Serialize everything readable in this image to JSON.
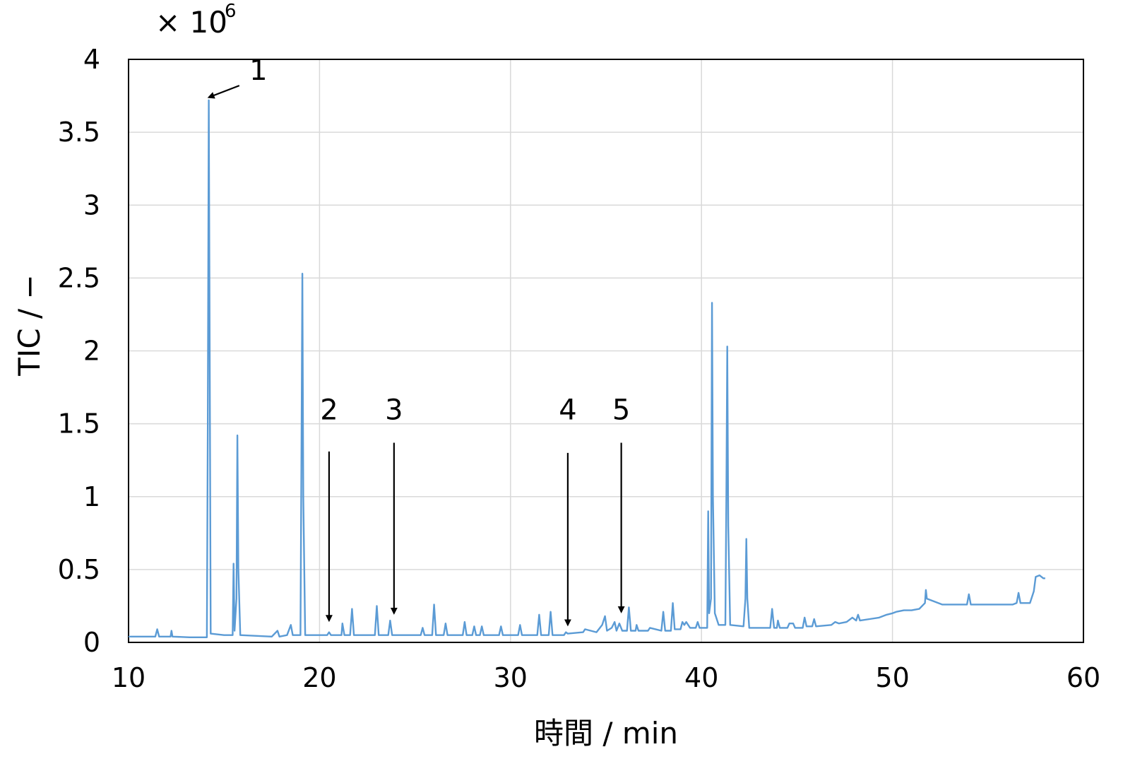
{
  "chart_data": {
    "type": "line",
    "xlabel": "時間 / min",
    "ylabel": "TIC / −",
    "y_multiplier_label": "× 10",
    "y_multiplier_exponent": "6",
    "xlim": [
      10,
      60
    ],
    "ylim": [
      0,
      4
    ],
    "x_ticks": [
      10,
      20,
      30,
      40,
      50,
      60
    ],
    "y_ticks": [
      0,
      0.5,
      1,
      1.5,
      2,
      2.5,
      3,
      3.5,
      4
    ],
    "y_tick_labels": [
      "0",
      "0.5",
      "1",
      "1.5",
      "2",
      "2.5",
      "3",
      "3.5",
      "4"
    ],
    "x_tick_labels": [
      "10",
      "20",
      "30",
      "40",
      "50",
      "60"
    ],
    "grid": true,
    "line_color": "#5b9bd5",
    "series": [
      {
        "values": [
          [
            10.0,
            0.04
          ],
          [
            11.4,
            0.04
          ],
          [
            11.5,
            0.09
          ],
          [
            11.6,
            0.04
          ],
          [
            12.2,
            0.04
          ],
          [
            12.25,
            0.08
          ],
          [
            12.3,
            0.04
          ],
          [
            13.2,
            0.035
          ],
          [
            14.1,
            0.035
          ],
          [
            14.15,
            1.5
          ],
          [
            14.2,
            3.72
          ],
          [
            14.25,
            2.0
          ],
          [
            14.3,
            0.06
          ],
          [
            15.0,
            0.05
          ],
          [
            15.45,
            0.05
          ],
          [
            15.5,
            0.54
          ],
          [
            15.55,
            0.08
          ],
          [
            15.65,
            0.3
          ],
          [
            15.7,
            1.42
          ],
          [
            15.75,
            0.5
          ],
          [
            15.85,
            0.05
          ],
          [
            17.5,
            0.04
          ],
          [
            17.8,
            0.08
          ],
          [
            17.9,
            0.04
          ],
          [
            18.3,
            0.05
          ],
          [
            18.5,
            0.12
          ],
          [
            18.6,
            0.05
          ],
          [
            19.0,
            0.05
          ],
          [
            19.05,
            1.2
          ],
          [
            19.1,
            2.53
          ],
          [
            19.15,
            1.0
          ],
          [
            19.25,
            0.05
          ],
          [
            20.4,
            0.05
          ],
          [
            20.5,
            0.07
          ],
          [
            20.6,
            0.05
          ],
          [
            21.15,
            0.05
          ],
          [
            21.2,
            0.13
          ],
          [
            21.3,
            0.05
          ],
          [
            21.6,
            0.05
          ],
          [
            21.7,
            0.23
          ],
          [
            21.8,
            0.05
          ],
          [
            22.9,
            0.05
          ],
          [
            23.0,
            0.25
          ],
          [
            23.1,
            0.05
          ],
          [
            23.6,
            0.05
          ],
          [
            23.7,
            0.15
          ],
          [
            23.8,
            0.05
          ],
          [
            25.3,
            0.05
          ],
          [
            25.4,
            0.1
          ],
          [
            25.5,
            0.05
          ],
          [
            25.9,
            0.05
          ],
          [
            26.0,
            0.26
          ],
          [
            26.1,
            0.05
          ],
          [
            26.5,
            0.05
          ],
          [
            26.6,
            0.13
          ],
          [
            26.7,
            0.05
          ],
          [
            27.5,
            0.05
          ],
          [
            27.6,
            0.14
          ],
          [
            27.7,
            0.05
          ],
          [
            28.0,
            0.05
          ],
          [
            28.1,
            0.11
          ],
          [
            28.2,
            0.05
          ],
          [
            28.4,
            0.05
          ],
          [
            28.5,
            0.11
          ],
          [
            28.6,
            0.05
          ],
          [
            29.4,
            0.05
          ],
          [
            29.5,
            0.11
          ],
          [
            29.6,
            0.05
          ],
          [
            30.4,
            0.05
          ],
          [
            30.5,
            0.12
          ],
          [
            30.6,
            0.05
          ],
          [
            31.4,
            0.05
          ],
          [
            31.5,
            0.19
          ],
          [
            31.6,
            0.05
          ],
          [
            32.0,
            0.05
          ],
          [
            32.1,
            0.21
          ],
          [
            32.2,
            0.05
          ],
          [
            32.8,
            0.05
          ],
          [
            32.9,
            0.07
          ],
          [
            33.0,
            0.06
          ],
          [
            33.8,
            0.07
          ],
          [
            33.9,
            0.09
          ],
          [
            34.5,
            0.07
          ],
          [
            34.8,
            0.12
          ],
          [
            34.95,
            0.18
          ],
          [
            35.05,
            0.08
          ],
          [
            35.3,
            0.1
          ],
          [
            35.45,
            0.14
          ],
          [
            35.55,
            0.08
          ],
          [
            35.7,
            0.13
          ],
          [
            35.85,
            0.08
          ],
          [
            36.1,
            0.08
          ],
          [
            36.2,
            0.24
          ],
          [
            36.3,
            0.08
          ],
          [
            36.55,
            0.08
          ],
          [
            36.6,
            0.12
          ],
          [
            36.7,
            0.08
          ],
          [
            37.2,
            0.08
          ],
          [
            37.3,
            0.1
          ],
          [
            37.9,
            0.08
          ],
          [
            38.0,
            0.21
          ],
          [
            38.1,
            0.08
          ],
          [
            38.4,
            0.08
          ],
          [
            38.5,
            0.27
          ],
          [
            38.6,
            0.09
          ],
          [
            38.9,
            0.09
          ],
          [
            39.0,
            0.14
          ],
          [
            39.1,
            0.12
          ],
          [
            39.2,
            0.14
          ],
          [
            39.4,
            0.1
          ],
          [
            39.7,
            0.1
          ],
          [
            39.8,
            0.14
          ],
          [
            39.9,
            0.1
          ],
          [
            40.3,
            0.1
          ],
          [
            40.35,
            0.9
          ],
          [
            40.4,
            0.2
          ],
          [
            40.5,
            0.3
          ],
          [
            40.55,
            2.33
          ],
          [
            40.6,
            1.0
          ],
          [
            40.7,
            0.2
          ],
          [
            40.9,
            0.12
          ],
          [
            41.25,
            0.12
          ],
          [
            41.3,
            1.0
          ],
          [
            41.35,
            2.03
          ],
          [
            41.4,
            0.8
          ],
          [
            41.5,
            0.12
          ],
          [
            42.2,
            0.11
          ],
          [
            42.3,
            0.3
          ],
          [
            42.35,
            0.71
          ],
          [
            42.4,
            0.3
          ],
          [
            42.5,
            0.1
          ],
          [
            43.6,
            0.1
          ],
          [
            43.7,
            0.23
          ],
          [
            43.8,
            0.1
          ],
          [
            43.95,
            0.1
          ],
          [
            44.0,
            0.15
          ],
          [
            44.1,
            0.1
          ],
          [
            44.5,
            0.1
          ],
          [
            44.6,
            0.13
          ],
          [
            44.8,
            0.13
          ],
          [
            44.9,
            0.1
          ],
          [
            45.3,
            0.1
          ],
          [
            45.4,
            0.17
          ],
          [
            45.5,
            0.11
          ],
          [
            45.8,
            0.11
          ],
          [
            45.9,
            0.16
          ],
          [
            46.0,
            0.11
          ],
          [
            46.8,
            0.12
          ],
          [
            47.0,
            0.14
          ],
          [
            47.2,
            0.13
          ],
          [
            47.6,
            0.14
          ],
          [
            47.9,
            0.17
          ],
          [
            48.1,
            0.15
          ],
          [
            48.2,
            0.19
          ],
          [
            48.3,
            0.15
          ],
          [
            48.8,
            0.16
          ],
          [
            49.3,
            0.17
          ],
          [
            49.7,
            0.19
          ],
          [
            50.0,
            0.2
          ],
          [
            50.2,
            0.21
          ],
          [
            50.6,
            0.22
          ],
          [
            51.0,
            0.22
          ],
          [
            51.4,
            0.23
          ],
          [
            51.7,
            0.27
          ],
          [
            51.75,
            0.36
          ],
          [
            51.8,
            0.3
          ],
          [
            52.2,
            0.28
          ],
          [
            52.6,
            0.26
          ],
          [
            53.0,
            0.26
          ],
          [
            53.5,
            0.26
          ],
          [
            53.9,
            0.26
          ],
          [
            54.0,
            0.33
          ],
          [
            54.1,
            0.26
          ],
          [
            54.8,
            0.26
          ],
          [
            55.2,
            0.26
          ],
          [
            55.8,
            0.26
          ],
          [
            56.3,
            0.26
          ],
          [
            56.5,
            0.27
          ],
          [
            56.6,
            0.34
          ],
          [
            56.7,
            0.27
          ],
          [
            57.2,
            0.27
          ],
          [
            57.4,
            0.35
          ],
          [
            57.5,
            0.45
          ],
          [
            57.7,
            0.46
          ],
          [
            57.9,
            0.44
          ],
          [
            58.0,
            0.44
          ]
        ]
      }
    ],
    "annotations": [
      {
        "label": "1",
        "x": 14.2,
        "y": 3.72,
        "arrow_from": [
          15.8,
          3.82
        ],
        "label_at": [
          16.8,
          3.86
        ]
      },
      {
        "label": "2",
        "x": 20.5,
        "y": 0.13,
        "arrow_from": [
          20.5,
          1.31
        ],
        "label_at": [
          20.5,
          1.53
        ]
      },
      {
        "label": "3",
        "x": 23.9,
        "y": 0.18,
        "arrow_from": [
          23.9,
          1.37
        ],
        "label_at": [
          23.9,
          1.53
        ]
      },
      {
        "label": "4",
        "x": 33.0,
        "y": 0.1,
        "arrow_from": [
          33.0,
          1.3
        ],
        "label_at": [
          33.0,
          1.53
        ]
      },
      {
        "label": "5",
        "x": 35.8,
        "y": 0.19,
        "arrow_from": [
          35.8,
          1.37
        ],
        "label_at": [
          35.8,
          1.53
        ]
      }
    ]
  }
}
